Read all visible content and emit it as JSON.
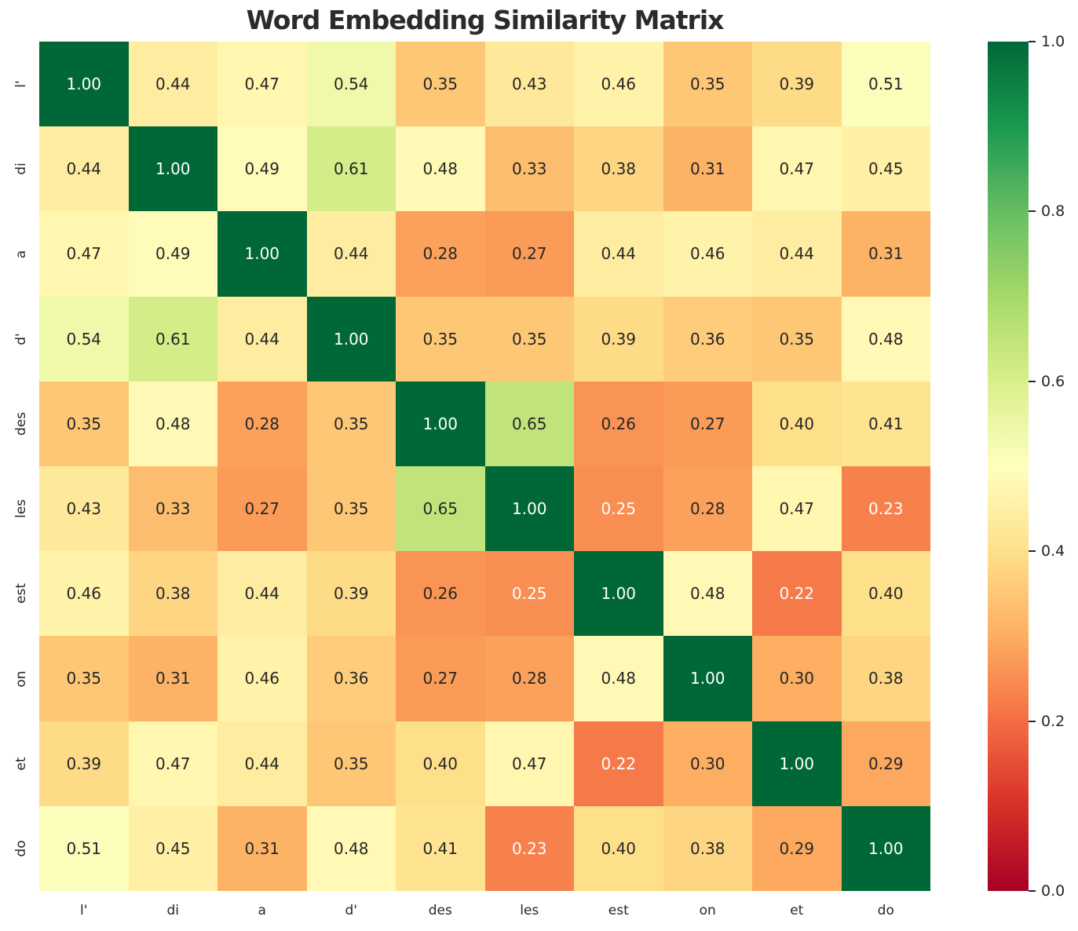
{
  "chart_data": {
    "type": "heatmap",
    "title": "Word Embedding Similarity Matrix",
    "labels": [
      "l'",
      "di",
      "a",
      "d'",
      "des",
      "les",
      "est",
      "on",
      "et",
      "do"
    ],
    "matrix": [
      [
        1.0,
        0.44,
        0.47,
        0.54,
        0.35,
        0.43,
        0.46,
        0.35,
        0.39,
        0.51
      ],
      [
        0.44,
        1.0,
        0.49,
        0.61,
        0.48,
        0.33,
        0.38,
        0.31,
        0.47,
        0.45
      ],
      [
        0.47,
        0.49,
        1.0,
        0.44,
        0.28,
        0.27,
        0.44,
        0.46,
        0.44,
        0.31
      ],
      [
        0.54,
        0.61,
        0.44,
        1.0,
        0.35,
        0.35,
        0.39,
        0.36,
        0.35,
        0.48
      ],
      [
        0.35,
        0.48,
        0.28,
        0.35,
        1.0,
        0.65,
        0.26,
        0.27,
        0.4,
        0.41
      ],
      [
        0.43,
        0.33,
        0.27,
        0.35,
        0.65,
        1.0,
        0.25,
        0.28,
        0.47,
        0.23
      ],
      [
        0.46,
        0.38,
        0.44,
        0.39,
        0.26,
        0.25,
        1.0,
        0.48,
        0.22,
        0.4
      ],
      [
        0.35,
        0.31,
        0.46,
        0.36,
        0.27,
        0.28,
        0.48,
        1.0,
        0.3,
        0.38
      ],
      [
        0.39,
        0.47,
        0.44,
        0.35,
        0.4,
        0.47,
        0.22,
        0.3,
        1.0,
        0.29
      ],
      [
        0.51,
        0.45,
        0.31,
        0.48,
        0.41,
        0.23,
        0.4,
        0.38,
        0.29,
        1.0
      ]
    ],
    "vmin": 0.0,
    "vmax": 1.0,
    "value_decimals": 2,
    "colormap_name": "RdYlGn",
    "colormap": [
      "#a50026",
      "#d73027",
      "#f46d43",
      "#fdae61",
      "#fee08b",
      "#ffffbf",
      "#d9ef8b",
      "#a6d96a",
      "#66bd63",
      "#1a9850",
      "#006837"
    ],
    "colorbar_ticks": [
      "1.0",
      "0.8",
      "0.6",
      "0.4",
      "0.2",
      "0.0"
    ],
    "annotation_dark_color": "#262626",
    "annotation_light_color": "#ffffff",
    "grid_on": false,
    "legend_position": "colorbar-right"
  }
}
